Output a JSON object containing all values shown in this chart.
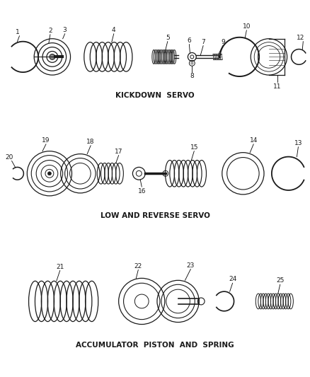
{
  "background_color": "#ffffff",
  "line_color": "#1a1a1a",
  "text_color": "#1a1a1a",
  "section1_label": "KICKDOWN  SERVO",
  "section2_label": "LOW AND REVERSE SERVO",
  "section3_label": "ACCUMULATOR  PISTON  AND  SPRING",
  "font_size_label": 7.5,
  "font_size_part": 6.5
}
